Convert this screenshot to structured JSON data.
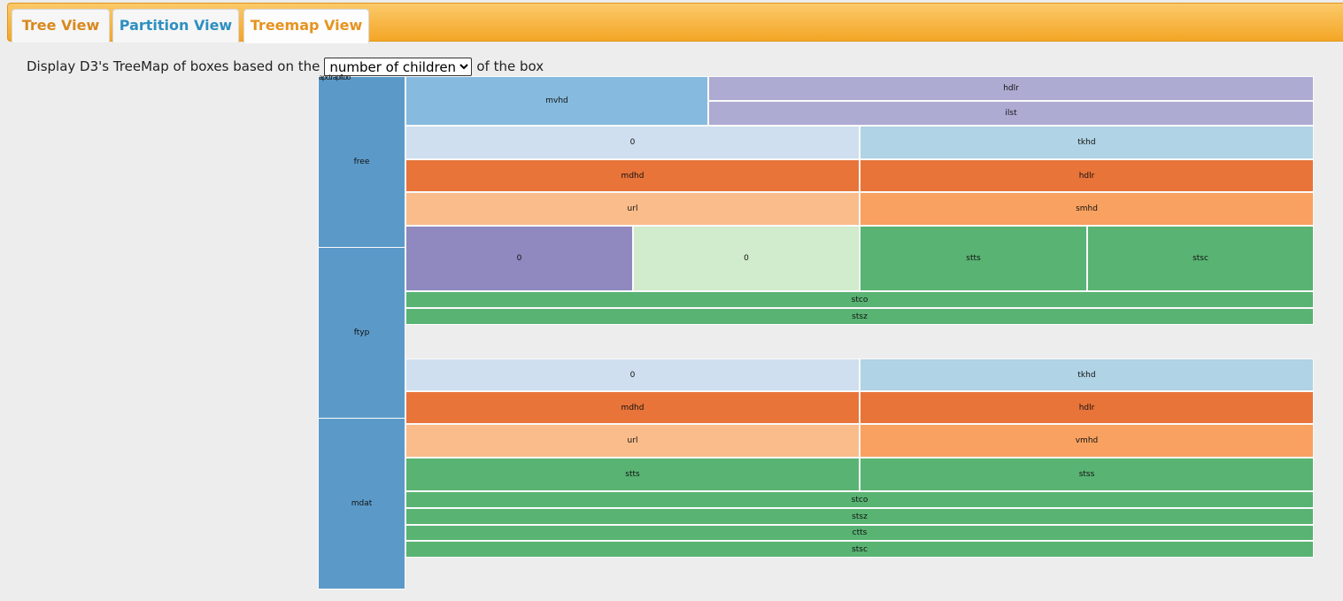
{
  "tabs": {
    "tree": "Tree View",
    "partition": "Partition View",
    "treemap": "Treemap View"
  },
  "description": {
    "before": "Display D3's TreeMap of boxes based on the",
    "after": "of the box",
    "select_options": [
      "number of children"
    ],
    "selected": "number of children"
  },
  "treemap": {
    "root_label": "moov",
    "overlapping_labels": "apctrapftoo",
    "boxes": [
      {
        "label": "free",
        "color": "#5b9ac8"
      },
      {
        "label": "ftyp",
        "color": "#5b9ac8"
      },
      {
        "label": "mdat",
        "color": "#5b9ac8"
      },
      {
        "label": "mvhd",
        "color": "#86bade"
      },
      {
        "label": "hdlr",
        "color": "#aeabd3"
      },
      {
        "label": "ilst",
        "color": "#aeabd3"
      },
      {
        "label": "0",
        "color": "#cfdfef"
      },
      {
        "label": "tkhd",
        "color": "#b0d3e5"
      },
      {
        "label": "mdhd",
        "color": "#e8743a"
      },
      {
        "label": "hdlr",
        "color": "#e8743a"
      },
      {
        "label": "url",
        "color": "#fabc8b"
      },
      {
        "label": "smhd",
        "color": "#f9a160"
      },
      {
        "label": "0",
        "color": "#8f89bf"
      },
      {
        "label": "0",
        "color": "#d1ebcd"
      },
      {
        "label": "stts",
        "color": "#59b373"
      },
      {
        "label": "stsc",
        "color": "#59b373"
      },
      {
        "label": "stco",
        "color": "#59b373"
      },
      {
        "label": "stsz",
        "color": "#59b373"
      },
      {
        "label": "0",
        "color": "#cfdfef"
      },
      {
        "label": "tkhd",
        "color": "#b0d3e5"
      },
      {
        "label": "mdhd",
        "color": "#e8743a"
      },
      {
        "label": "hdlr",
        "color": "#e8743a"
      },
      {
        "label": "url",
        "color": "#fabc8b"
      },
      {
        "label": "vmhd",
        "color": "#f9a160"
      },
      {
        "label": "stts",
        "color": "#59b373"
      },
      {
        "label": "stss",
        "color": "#59b373"
      },
      {
        "label": "stco",
        "color": "#59b373"
      },
      {
        "label": "stsz",
        "color": "#59b373"
      },
      {
        "label": "ctts",
        "color": "#59b373"
      },
      {
        "label": "stsc",
        "color": "#59b373"
      }
    ]
  }
}
